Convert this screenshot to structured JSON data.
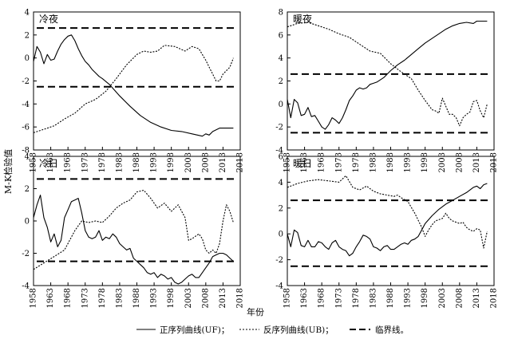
{
  "figure": {
    "ylabel": "M-K检验值",
    "xlabel": "年份",
    "legend": [
      "正序列曲线(UF)；",
      "反序列曲线(UB)；",
      "临界线。"
    ]
  },
  "chart_data": [
    {
      "type": "line",
      "title": "冷夜",
      "x_ticks": [
        1958,
        1963,
        1968,
        1973,
        1978,
        1983,
        1988,
        1993,
        1998,
        2003,
        2008,
        2013,
        2018
      ],
      "y_ticks": [
        -8,
        -6,
        -4,
        -2,
        0,
        2,
        4
      ],
      "ylim": [
        -8,
        4
      ],
      "xlim": [
        1958,
        2018
      ],
      "critical": [
        2.6,
        -2.5
      ],
      "series": [
        {
          "name": "UF",
          "style": "solid",
          "x": [
            1958,
            1959,
            1960,
            1961,
            1962,
            1963,
            1964,
            1965,
            1966,
            1967,
            1968,
            1969,
            1970,
            1971,
            1972,
            1973,
            1974,
            1975,
            1976,
            1977,
            1978,
            1980,
            1983,
            1986,
            1989,
            1992,
            1995,
            1998,
            2001,
            2004,
            2007,
            2008,
            2009,
            2010,
            2012,
            2014,
            2016
          ],
          "y": [
            -0.3,
            1.0,
            0.5,
            -0.5,
            0.3,
            -0.2,
            -0.1,
            0.6,
            1.2,
            1.6,
            1.9,
            2.0,
            1.5,
            0.8,
            0.2,
            -0.3,
            -0.6,
            -1.0,
            -1.3,
            -1.6,
            -1.8,
            -2.3,
            -3.3,
            -4.2,
            -5.0,
            -5.6,
            -6.0,
            -6.3,
            -6.4,
            -6.6,
            -6.8,
            -6.6,
            -6.7,
            -6.4,
            -6.1,
            -6.1,
            -6.1
          ]
        },
        {
          "name": "UB",
          "style": "dotted",
          "x": [
            1958,
            1961,
            1964,
            1967,
            1970,
            1973,
            1976,
            1979,
            1982,
            1985,
            1988,
            1990,
            1992,
            1994,
            1996,
            1999,
            2002,
            2004,
            2006,
            2008,
            2009,
            2010,
            2011,
            2012,
            2013,
            2015,
            2016
          ],
          "y": [
            -6.5,
            -6.2,
            -5.9,
            -5.3,
            -4.8,
            -4.0,
            -3.6,
            -2.9,
            -1.8,
            -0.6,
            0.3,
            0.6,
            0.5,
            0.6,
            1.1,
            1.0,
            0.6,
            1.0,
            0.8,
            -0.2,
            -0.8,
            -1.4,
            -2.0,
            -2.0,
            -1.4,
            -0.8,
            0.0
          ]
        }
      ]
    },
    {
      "type": "line",
      "title": "暖夜",
      "x_ticks": [
        1958,
        1963,
        1968,
        1973,
        1978,
        1983,
        1988,
        1993,
        1998,
        2003,
        2008,
        2013,
        2018
      ],
      "y_ticks": [
        -4,
        -2,
        0,
        2,
        4,
        6,
        8
      ],
      "ylim": [
        -4,
        8
      ],
      "xlim": [
        1958,
        2018
      ],
      "critical": [
        2.6,
        -2.5
      ],
      "series": [
        {
          "name": "UF",
          "style": "solid",
          "x": [
            1958,
            1959,
            1960,
            1961,
            1962,
            1963,
            1964,
            1965,
            1966,
            1967,
            1968,
            1969,
            1970,
            1971,
            1972,
            1973,
            1974,
            1975,
            1976,
            1977,
            1978,
            1979,
            1980,
            1981,
            1982,
            1983,
            1984,
            1986,
            1988,
            1990,
            1992,
            1994,
            1996,
            1998,
            2000,
            2002,
            2004,
            2006,
            2008,
            2010,
            2012,
            2013,
            2014,
            2015,
            2016
          ],
          "y": [
            0.4,
            -1.2,
            0.4,
            0.1,
            -1.0,
            -0.9,
            -0.3,
            -1.1,
            -1.0,
            -1.5,
            -2.0,
            -2.2,
            -1.8,
            -1.2,
            -1.4,
            -1.7,
            -1.2,
            -0.5,
            0.3,
            0.7,
            1.2,
            1.4,
            1.3,
            1.4,
            1.7,
            1.8,
            1.9,
            2.3,
            2.9,
            3.4,
            3.8,
            4.3,
            4.8,
            5.3,
            5.7,
            6.1,
            6.5,
            6.8,
            7.0,
            7.1,
            7.0,
            7.2,
            7.2,
            7.2,
            7.2
          ]
        },
        {
          "name": "UB",
          "style": "dotted",
          "x": [
            1958,
            1961,
            1964,
            1967,
            1970,
            1973,
            1976,
            1979,
            1982,
            1985,
            1988,
            1991,
            1994,
            1996,
            1998,
            2000,
            2001,
            2002,
            2003,
            2004,
            2005,
            2006,
            2007,
            2008,
            2009,
            2010,
            2011,
            2012,
            2013,
            2014,
            2015,
            2016
          ],
          "y": [
            6.7,
            7.0,
            7.1,
            6.8,
            6.5,
            6.1,
            5.8,
            5.2,
            4.6,
            4.4,
            3.5,
            2.8,
            2.2,
            1.2,
            0.3,
            -0.5,
            -0.6,
            -0.8,
            0.5,
            -0.2,
            -0.9,
            -0.9,
            -1.2,
            -1.9,
            -1.2,
            -0.9,
            -0.7,
            0.2,
            0.3,
            -0.6,
            -1.2,
            0.0
          ]
        }
      ]
    },
    {
      "type": "line",
      "title": "冷日",
      "x_ticks": [
        1958,
        1963,
        1968,
        1973,
        1978,
        1983,
        1988,
        1993,
        1998,
        2003,
        2008,
        2013,
        2018
      ],
      "y_ticks": [
        -4,
        -2,
        0,
        2,
        4
      ],
      "ylim": [
        -4,
        4
      ],
      "xlim": [
        1958,
        2018
      ],
      "critical": [
        2.6,
        -2.5
      ],
      "series": [
        {
          "name": "UF",
          "style": "solid",
          "x": [
            1958,
            1959,
            1960,
            1961,
            1962,
            1963,
            1964,
            1965,
            1966,
            1967,
            1968,
            1969,
            1970,
            1971,
            1972,
            1973,
            1974,
            1975,
            1976,
            1977,
            1978,
            1979,
            1980,
            1981,
            1982,
            1983,
            1984,
            1985,
            1986,
            1987,
            1988,
            1989,
            1990,
            1991,
            1992,
            1993,
            1994,
            1995,
            1996,
            1997,
            1998,
            1999,
            2000,
            2001,
            2002,
            2003,
            2004,
            2005,
            2006,
            2007,
            2008,
            2009,
            2010,
            2011,
            2012,
            2013,
            2014,
            2015,
            2016
          ],
          "y": [
            0.2,
            1.0,
            1.6,
            0.2,
            -0.4,
            -1.3,
            -0.8,
            -1.6,
            -1.2,
            0.2,
            0.7,
            1.2,
            1.3,
            1.4,
            0.5,
            -0.6,
            -1.0,
            -1.1,
            -1.0,
            -0.6,
            -1.2,
            -1.0,
            -1.1,
            -0.8,
            -1.0,
            -1.4,
            -1.6,
            -1.8,
            -1.7,
            -2.3,
            -2.5,
            -2.7,
            -2.9,
            -3.2,
            -3.3,
            -3.2,
            -3.5,
            -3.3,
            -3.4,
            -3.6,
            -3.5,
            -3.8,
            -3.9,
            -3.8,
            -3.6,
            -3.4,
            -3.3,
            -3.5,
            -3.5,
            -3.2,
            -2.9,
            -2.6,
            -2.2,
            -2.1,
            -2.0,
            -2.0,
            -2.1,
            -2.3,
            -2.5
          ]
        },
        {
          "name": "UB",
          "style": "dotted",
          "x": [
            1958,
            1961,
            1964,
            1967,
            1970,
            1972,
            1974,
            1976,
            1978,
            1980,
            1982,
            1984,
            1986,
            1988,
            1990,
            1992,
            1994,
            1996,
            1998,
            2000,
            2002,
            2003,
            2004,
            2006,
            2007,
            2008,
            2009,
            2010,
            2011,
            2012,
            2013,
            2014,
            2015,
            2016
          ],
          "y": [
            -3.0,
            -2.6,
            -2.2,
            -1.8,
            -0.6,
            0.0,
            -0.1,
            0.0,
            -0.1,
            0.3,
            0.8,
            1.1,
            1.3,
            1.8,
            1.9,
            1.4,
            0.8,
            1.1,
            0.6,
            1.0,
            0.2,
            -1.2,
            -1.1,
            -0.8,
            -1.1,
            -1.8,
            -2.0,
            -1.8,
            -2.0,
            -1.4,
            0.0,
            1.0,
            0.6,
            -0.1
          ]
        }
      ]
    },
    {
      "type": "line",
      "title": "暖日",
      "x_ticks": [
        1958,
        1963,
        1968,
        1973,
        1978,
        1983,
        1988,
        1993,
        1998,
        2003,
        2008,
        2013,
        2018
      ],
      "y_ticks": [
        -4,
        -2,
        0,
        2,
        4,
        6
      ],
      "ylim": [
        -4,
        6
      ],
      "xlim": [
        1958,
        2018
      ],
      "critical": [
        2.6,
        -2.5
      ],
      "series": [
        {
          "name": "UF",
          "style": "solid",
          "x": [
            1958,
            1959,
            1960,
            1961,
            1962,
            1963,
            1964,
            1965,
            1966,
            1967,
            1968,
            1969,
            1970,
            1971,
            1972,
            1973,
            1974,
            1975,
            1976,
            1977,
            1978,
            1979,
            1980,
            1981,
            1982,
            1983,
            1984,
            1985,
            1986,
            1987,
            1988,
            1989,
            1990,
            1991,
            1992,
            1993,
            1994,
            1995,
            1996,
            1997,
            1998,
            1999,
            2000,
            2002,
            2004,
            2006,
            2008,
            2010,
            2012,
            2013,
            2014,
            2015,
            2016
          ],
          "y": [
            0.0,
            -1.0,
            0.3,
            0.1,
            -0.9,
            -1.0,
            -0.5,
            -1.0,
            -1.0,
            -0.6,
            -0.7,
            -1.0,
            -1.2,
            -0.7,
            -0.5,
            -1.0,
            -1.2,
            -1.3,
            -1.7,
            -1.5,
            -1.0,
            -0.6,
            -0.1,
            -0.2,
            -0.4,
            -1.0,
            -1.1,
            -1.3,
            -1.0,
            -0.9,
            -1.2,
            -1.2,
            -1.0,
            -0.8,
            -0.7,
            -0.8,
            -0.5,
            -0.4,
            -0.2,
            0.3,
            0.8,
            1.1,
            1.4,
            1.9,
            2.3,
            2.6,
            2.9,
            3.2,
            3.6,
            3.7,
            3.5,
            3.8,
            3.9
          ]
        },
        {
          "name": "UB",
          "style": "dotted",
          "x": [
            1958,
            1961,
            1964,
            1967,
            1970,
            1973,
            1975,
            1977,
            1979,
            1981,
            1983,
            1985,
            1987,
            1989,
            1990,
            1991,
            1993,
            1995,
            1997,
            1998,
            1999,
            2000,
            2001,
            2002,
            2003,
            2004,
            2005,
            2006,
            2008,
            2009,
            2010,
            2011,
            2012,
            2013,
            2014,
            2015,
            2016
          ],
          "y": [
            3.6,
            3.9,
            4.1,
            4.2,
            4.1,
            4.0,
            4.5,
            3.6,
            3.4,
            3.7,
            3.3,
            3.1,
            3.0,
            2.9,
            3.0,
            2.8,
            2.5,
            1.6,
            0.5,
            -0.2,
            0.3,
            0.7,
            1.0,
            1.1,
            1.2,
            1.6,
            1.2,
            1.0,
            0.8,
            0.9,
            0.5,
            0.3,
            0.2,
            0.4,
            0.3,
            -1.1,
            0.2
          ]
        }
      ]
    }
  ]
}
